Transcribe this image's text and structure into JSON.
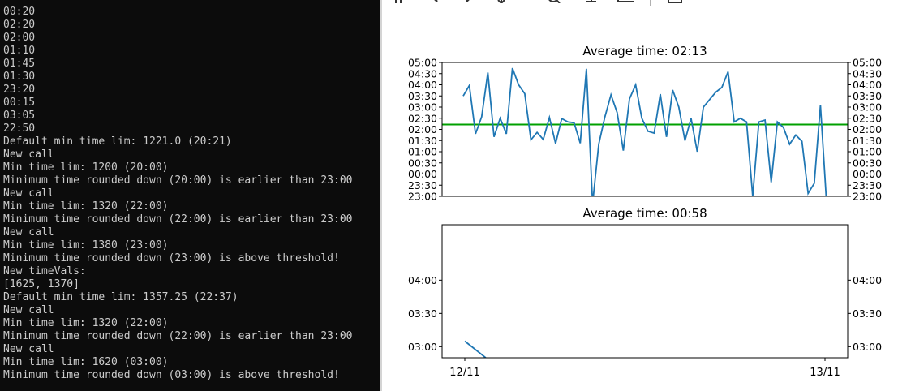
{
  "terminal": {
    "lines": [
      "00:20",
      "02:20",
      "02:00",
      "01:10",
      "01:45",
      "01:30",
      "23:20",
      "00:15",
      "03:05",
      "22:50",
      "Default min time lim: 1221.0 (20:21)",
      "New call",
      "Min time lim: 1200 (20:00)",
      "Minimum time rounded down (20:00) is earlier than 23:00",
      "New call",
      "Min time lim: 1320 (22:00)",
      "Minimum time rounded down (22:00) is earlier than 23:00",
      "New call",
      "Min time lim: 1380 (23:00)",
      "Minimum time rounded down (23:00) is above threshold!",
      "New timeVals:",
      "[1625, 1370]",
      "Default min time lim: 1357.25 (22:37)",
      "New call",
      "Min time lim: 1320 (22:00)",
      "Minimum time rounded down (22:00) is earlier than 23:00",
      "New call",
      "Min time lim: 1620 (03:00)",
      "Minimum time rounded down (03:00) is above threshold!"
    ]
  },
  "toolbar": {
    "icons": [
      "pan-icon",
      "back-arrow-icon",
      "forward-arrow-icon",
      "move-icon",
      "zoom-icon",
      "subplots-icon",
      "edit-axes-icon",
      "save-icon"
    ]
  },
  "chart_data": [
    {
      "type": "line",
      "title": "Average time: 02:13",
      "y_unit": "minutes after 23:00 (axis wraps past midnight)",
      "ylim": [
        0,
        360
      ],
      "yticks": [
        0,
        30,
        60,
        90,
        120,
        150,
        180,
        210,
        240,
        270,
        300,
        330,
        360
      ],
      "ytick_labels": [
        "23:00",
        "23:30",
        "00:00",
        "00:30",
        "01:00",
        "01:30",
        "02:00",
        "02:30",
        "03:00",
        "03:30",
        "04:00",
        "04:30",
        "05:00"
      ],
      "series": [
        {
          "color": "#1f77b4",
          "values": [
            270,
            298,
            168,
            214,
            333,
            160,
            210,
            168,
            345,
            300,
            276,
            152,
            172,
            153,
            212,
            142,
            209,
            200,
            198,
            143,
            343,
            -20,
            140,
            213,
            273,
            225,
            123,
            262,
            300,
            210,
            175,
            170,
            275,
            160,
            286,
            240,
            150,
            210,
            120,
            240,
            260,
            280,
            293,
            335,
            200,
            210,
            200,
            0,
            200,
            205,
            38,
            200,
            185,
            140,
            165,
            148,
            8,
            35,
            245,
            -20
          ],
          "ymin_clip": 0
        }
      ],
      "hlines": [
        {
          "y": 193,
          "color": "#00a000"
        }
      ],
      "grid": false,
      "legend": "none"
    },
    {
      "type": "line",
      "title": "Average time: 00:58",
      "ylim": [
        170,
        290
      ],
      "yticks": [
        180,
        210,
        240
      ],
      "ytick_labels": [
        "03:00",
        "03:30",
        "04:00"
      ],
      "x": [
        0,
        1
      ],
      "xtick_labels": [
        "12/11",
        "13/11"
      ],
      "series": [
        {
          "color": "#1f77b4",
          "points": [
            [
              0,
              185
            ],
            [
              0.058,
              170
            ]
          ]
        }
      ],
      "grid": false,
      "legend": "none"
    }
  ]
}
